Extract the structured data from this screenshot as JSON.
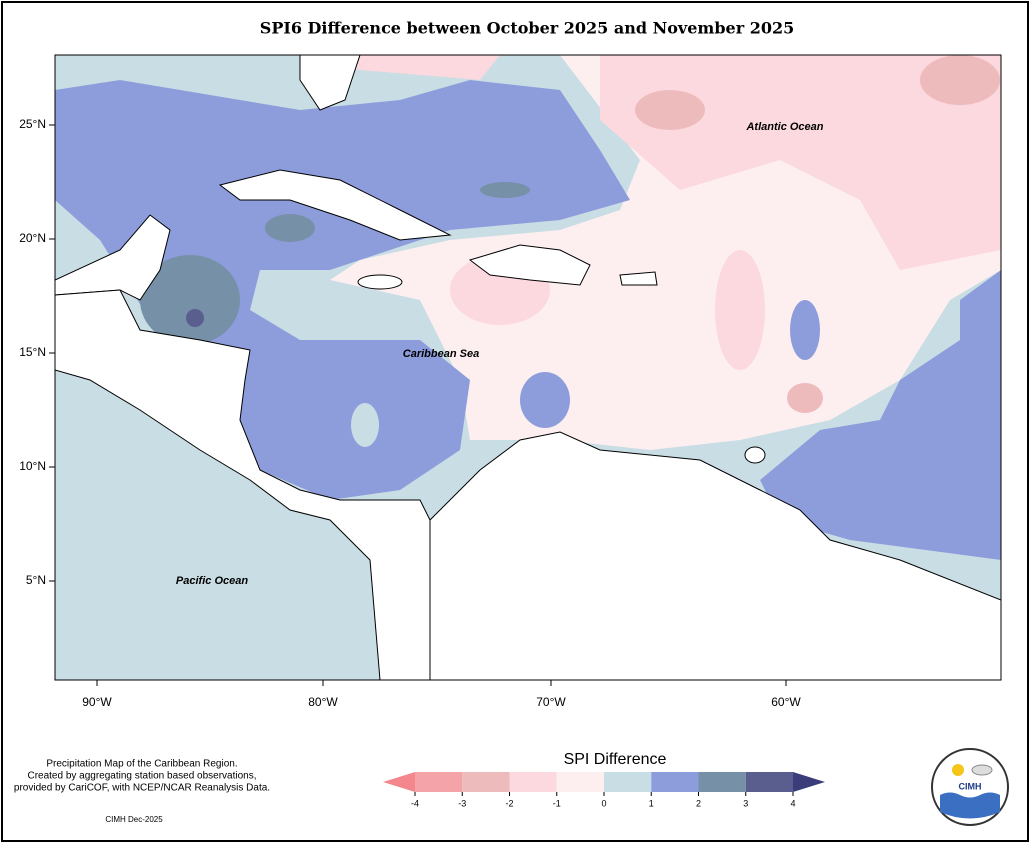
{
  "title": "SPI6 Difference between October 2025 and November 2025",
  "map": {
    "lat_labels": [
      "25°N",
      "20°N",
      "15°N",
      "10°N",
      "5°N"
    ],
    "lon_labels": [
      "90°W",
      "80°W",
      "70°W",
      "60°W"
    ],
    "region_labels": [
      "Atlantic Ocean",
      "Caribbean Sea",
      "Pacific Ocean"
    ]
  },
  "legend": {
    "title": "SPI Difference",
    "ticks": [
      -4,
      -3,
      -2,
      -1,
      0,
      1,
      2,
      3,
      4
    ],
    "colors": [
      "#f4868d",
      "#f4a3a8",
      "#eebbbd",
      "#fbd9de",
      "#fdeff0",
      "#c9dde4",
      "#8d9ddc",
      "#7690a8",
      "#5a5e8e",
      "#3a3d7a"
    ]
  },
  "footnote": {
    "lines": [
      "Precipitation Map of the Caribbean Region.",
      "Created by aggregating station based observations,",
      "provided by CariCOF, with NCEP/NCAR Reanalysis Data."
    ],
    "credit": "CIMH Dec-2025"
  },
  "logo": "CIMH"
}
